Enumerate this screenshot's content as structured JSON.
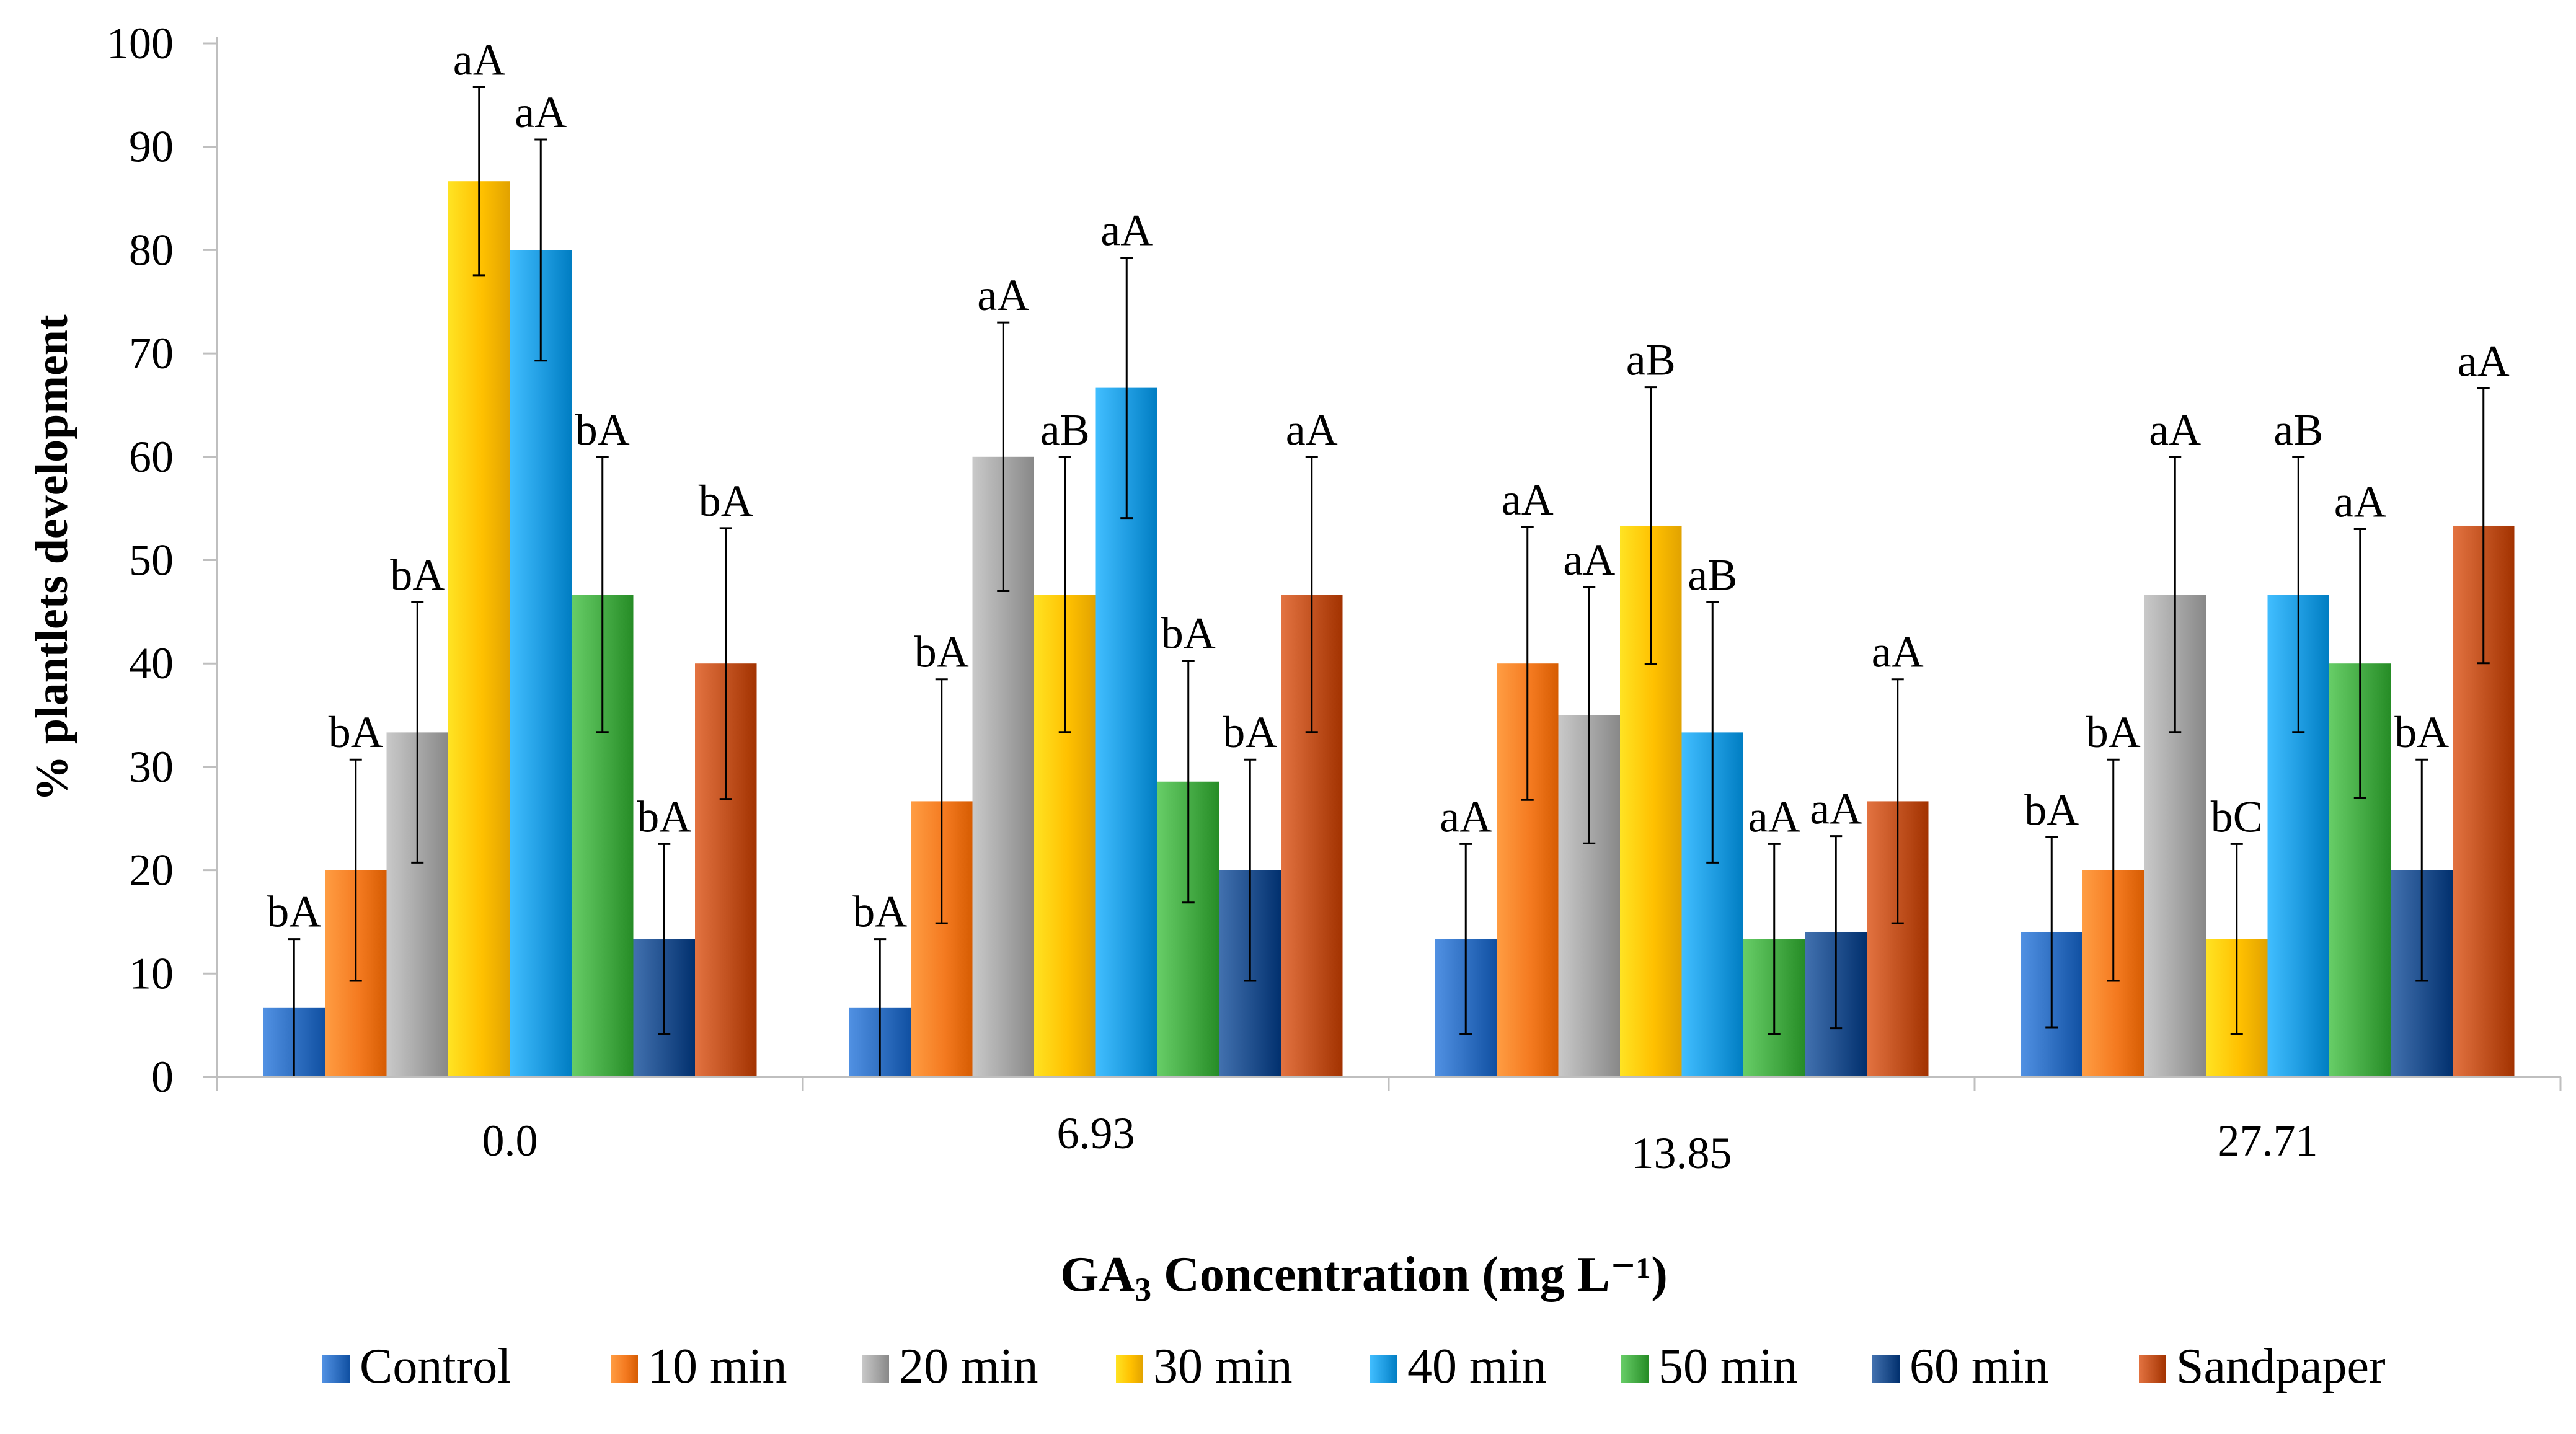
{
  "chart_data": {
    "type": "bar",
    "title": "",
    "xlabel_main": "GA",
    "xlabel_sub": "3",
    "xlabel_rest": " Concentration (mg L⁻¹)",
    "ylabel": "% plantlets development",
    "ylim": [
      0,
      100
    ],
    "yticks": [
      "0",
      "10",
      "20",
      "30",
      "40",
      "50",
      "60",
      "70",
      "80",
      "90",
      "100"
    ],
    "categories": [
      "0.0",
      "6.93",
      "13.85",
      "27.71"
    ],
    "legend_position": "bottom",
    "series": [
      {
        "name": "Control",
        "color": "#2e6ec0",
        "values": [
          6.67,
          6.67,
          13.33,
          14.0
        ],
        "errors": [
          6.67,
          6.67,
          9.2,
          9.2
        ],
        "labels": [
          "bA",
          "bA",
          "aA",
          "bA"
        ]
      },
      {
        "name": "10 min",
        "color": "#f47a20",
        "values": [
          20.0,
          26.67,
          40.0,
          20.0
        ],
        "errors": [
          10.7,
          11.8,
          13.2,
          10.7
        ],
        "labels": [
          "bA",
          "bA",
          "aA",
          "bA"
        ]
      },
      {
        "name": "20 min",
        "color": "#a6a6a6",
        "values": [
          33.33,
          60.0,
          35.0,
          46.67
        ],
        "errors": [
          12.6,
          13.0,
          12.4,
          13.3
        ],
        "labels": [
          "bA",
          "aA",
          "aA",
          "aA"
        ]
      },
      {
        "name": "30 min",
        "color": "#ffc000",
        "values": [
          86.67,
          46.67,
          53.33,
          13.33
        ],
        "errors": [
          9.1,
          13.3,
          13.4,
          9.2
        ],
        "labels": [
          "aA",
          "aB",
          "aB",
          "bC"
        ]
      },
      {
        "name": "40 min",
        "color": "#1e9be0",
        "values": [
          80.0,
          66.67,
          33.33,
          46.67
        ],
        "errors": [
          10.7,
          12.6,
          12.6,
          13.3
        ],
        "labels": [
          "aA",
          "aA",
          "aB",
          "aB"
        ]
      },
      {
        "name": "50 min",
        "color": "#44aa44",
        "values": [
          46.67,
          28.57,
          13.33,
          40.0
        ],
        "errors": [
          13.3,
          11.7,
          9.2,
          13.0
        ],
        "labels": [
          "bA",
          "bA",
          "aA",
          "aA"
        ]
      },
      {
        "name": "60 min",
        "color": "#1f4e8c",
        "values": [
          13.33,
          20.0,
          14.0,
          20.0
        ],
        "errors": [
          9.2,
          10.7,
          9.3,
          10.7
        ],
        "labels": [
          "bA",
          "bA",
          "aA",
          "bA"
        ]
      },
      {
        "name": "Sandpaper",
        "color": "#c0501e",
        "values": [
          40.0,
          46.67,
          26.67,
          53.33
        ],
        "errors": [
          13.1,
          13.3,
          11.8,
          13.3
        ],
        "labels": [
          "bA",
          "aA",
          "aA",
          "aA"
        ]
      }
    ]
  }
}
